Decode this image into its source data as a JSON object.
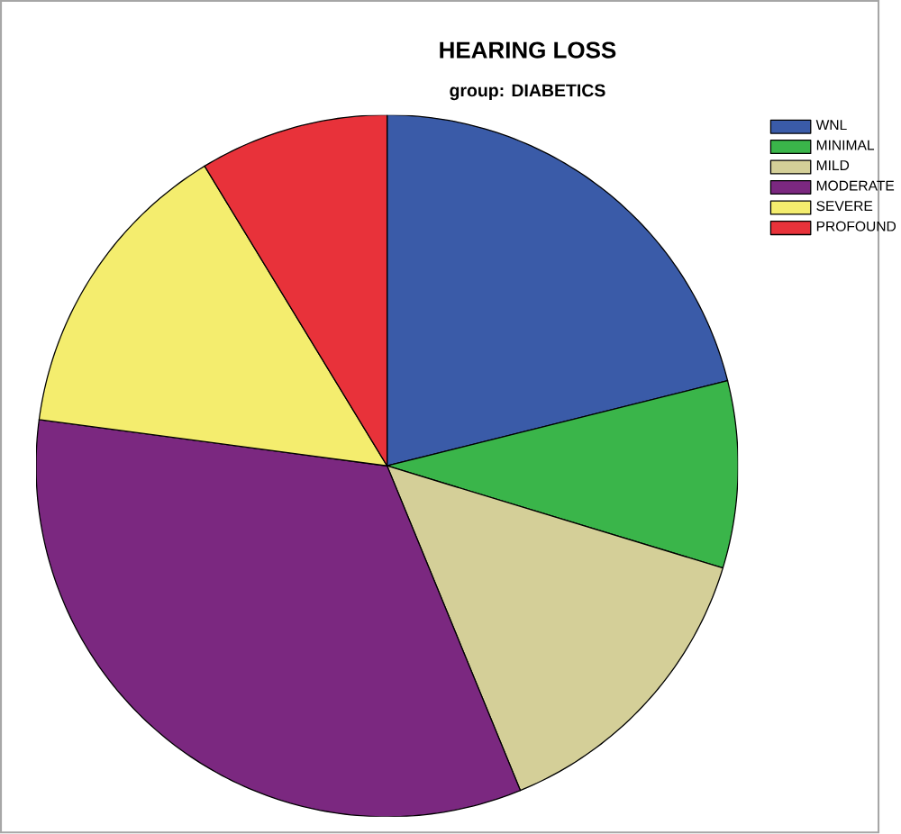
{
  "chart_data": {
    "type": "pie",
    "title": "HEARING LOSS",
    "subtitle": "group: DIABETICS",
    "categories": [
      "WNL",
      "MINIMAL",
      "MILD",
      "MODERATE",
      "SEVERE",
      "PROFOUND"
    ],
    "values": [
      21.1,
      8.6,
      14.1,
      33.3,
      14.2,
      8.7
    ],
    "colors": [
      "#3a5ba8",
      "#3ab54a",
      "#d4cf98",
      "#7b2880",
      "#f4ed6e",
      "#e8323a"
    ],
    "legend": "top right"
  }
}
